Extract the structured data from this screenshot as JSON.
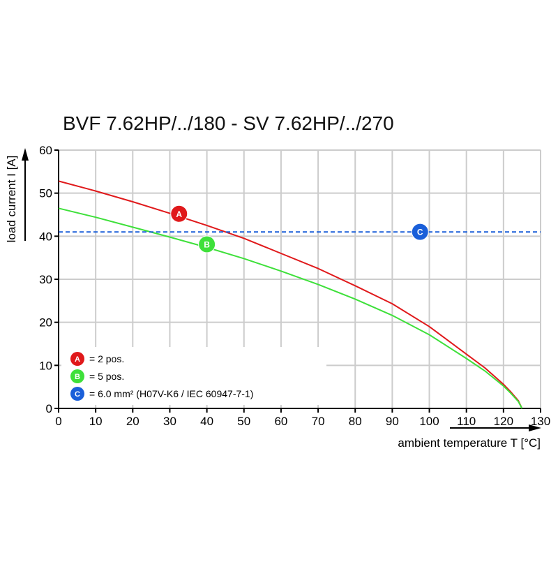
{
  "chart_data": {
    "type": "line",
    "title": "BVF 7.62HP/../180 - SV 7.62HP/../270",
    "xlabel": "ambient temperature T [°C]",
    "ylabel": "load current I [A]",
    "xlim": [
      0,
      130
    ],
    "ylim": [
      0,
      60
    ],
    "x_ticks": [
      0,
      10,
      20,
      30,
      40,
      50,
      60,
      70,
      80,
      90,
      100,
      110,
      120,
      130
    ],
    "y_ticks": [
      0,
      10,
      20,
      30,
      40,
      50,
      60
    ],
    "grid": true,
    "legend_position": "bottom-left",
    "series": [
      {
        "marker": "A",
        "legend_text": "= 2 pos.",
        "color": "#e0191b",
        "style": "solid",
        "x": [
          0,
          10,
          20,
          30,
          40,
          50,
          60,
          70,
          80,
          90,
          100,
          110,
          115,
          120,
          122,
          124,
          125
        ],
        "y": [
          52.8,
          50.5,
          48.0,
          45.3,
          42.5,
          39.5,
          36.0,
          32.5,
          28.5,
          24.3,
          19.0,
          12.6,
          9.4,
          5.6,
          3.8,
          1.8,
          0
        ],
        "label_at": [
          32.5,
          45.2
        ]
      },
      {
        "marker": "B",
        "legend_text": "= 5 pos.",
        "color": "#3ee03a",
        "style": "solid",
        "x": [
          0,
          10,
          20,
          30,
          40,
          50,
          60,
          70,
          80,
          90,
          100,
          110,
          115,
          120,
          122,
          124,
          125
        ],
        "y": [
          46.5,
          44.4,
          42.1,
          39.8,
          37.4,
          34.8,
          31.9,
          28.8,
          25.4,
          21.6,
          17.1,
          11.6,
          8.7,
          5.2,
          3.5,
          1.6,
          0
        ],
        "label_at": [
          40,
          38.1
        ]
      },
      {
        "marker": "C",
        "legend_text": "= 6.0 mm² (H07V-K6 / IEC 60947-7-1)",
        "color": "#1a5fd9",
        "style": "dashed",
        "x": [
          0,
          130
        ],
        "y": [
          41,
          41
        ],
        "label_at": [
          97.5,
          41
        ]
      }
    ]
  }
}
